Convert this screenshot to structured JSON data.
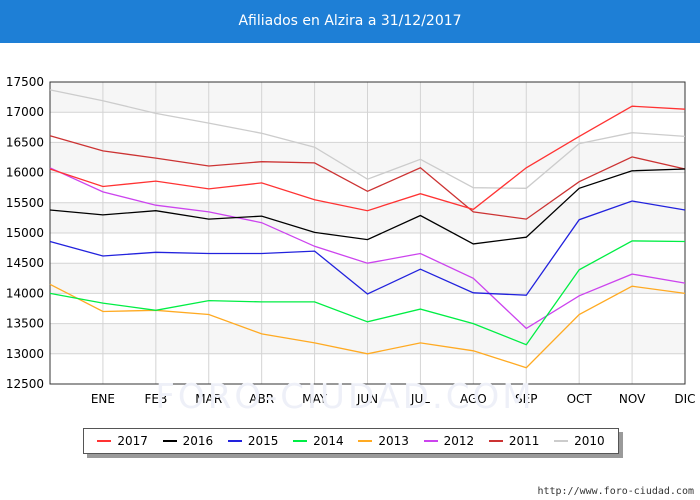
{
  "title": "Afiliados en Alzira a 31/12/2017",
  "watermark": "FORO-CIUDAD.COM",
  "footer": "http://www.foro-ciudad.com",
  "colors": {
    "header": "#1e7fd6",
    "grid": "#cccccc"
  },
  "chart_data": {
    "type": "line",
    "title": "Afiliados en Alzira a 31/12/2017",
    "xlabel": "",
    "ylabel": "",
    "categories": [
      "",
      "ENE",
      "FEB",
      "MAR",
      "ABR",
      "MAY",
      "JUN",
      "JUL",
      "AGO",
      "SEP",
      "OCT",
      "NOV",
      "DIC"
    ],
    "ylim": [
      12500,
      17500
    ],
    "yticks": [
      12500,
      13000,
      13500,
      14000,
      14500,
      15000,
      15500,
      16000,
      16500,
      17000,
      17500
    ],
    "grid": true,
    "legend_position": "bottom",
    "series": [
      {
        "name": "2017",
        "color": "#ff3333",
        "values": [
          16060,
          15770,
          15860,
          15730,
          15830,
          15550,
          15370,
          15650,
          15390,
          16080,
          16600,
          17100,
          17050
        ]
      },
      {
        "name": "2016",
        "color": "#000000",
        "values": [
          15380,
          15300,
          15370,
          15230,
          15280,
          15010,
          14890,
          15290,
          14820,
          14930,
          15740,
          16030,
          16060
        ]
      },
      {
        "name": "2015",
        "color": "#2222dd",
        "values": [
          14860,
          14620,
          14680,
          14660,
          14660,
          14700,
          13990,
          14400,
          14010,
          13970,
          15220,
          15530,
          15380
        ]
      },
      {
        "name": "2014",
        "color": "#00ee44",
        "values": [
          14000,
          13840,
          13720,
          13880,
          13860,
          13860,
          13530,
          13740,
          13500,
          13150,
          14390,
          14870,
          14860
        ]
      },
      {
        "name": "2013",
        "color": "#ffaa22",
        "values": [
          14150,
          13700,
          13720,
          13650,
          13330,
          13180,
          13000,
          13180,
          13050,
          12770,
          13650,
          14120,
          14000
        ]
      },
      {
        "name": "2012",
        "color": "#cc44ee",
        "values": [
          16080,
          15680,
          15460,
          15350,
          15170,
          14780,
          14500,
          14660,
          14250,
          13420,
          13960,
          14320,
          14170
        ]
      },
      {
        "name": "2011",
        "color": "#cc3333",
        "values": [
          16610,
          16360,
          16240,
          16110,
          16180,
          16160,
          15690,
          16080,
          15350,
          15230,
          15850,
          16260,
          16060
        ]
      },
      {
        "name": "2010",
        "color": "#cccccc",
        "values": [
          17370,
          17190,
          16980,
          16820,
          16650,
          16420,
          15890,
          16220,
          15750,
          15740,
          16480,
          16660,
          16600
        ]
      }
    ]
  }
}
